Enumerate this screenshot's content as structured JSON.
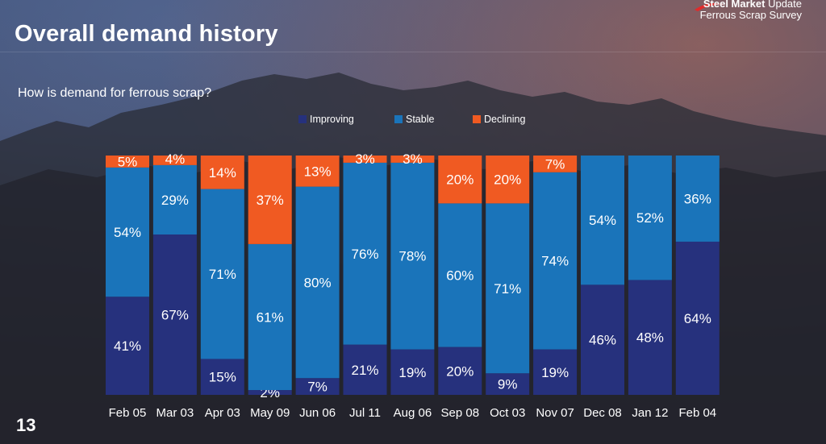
{
  "slide": {
    "title": "Overall demand history",
    "subtitle": "How is demand for ferrous scrap?",
    "page_number": "13",
    "logo_line1_bold": "Steel Market",
    "logo_line1_rest": "Update",
    "logo_line2": "Ferrous Scrap Survey"
  },
  "colors": {
    "improving": "#26317d",
    "stable": "#1a74ba",
    "declining": "#f05a22",
    "logo_swoosh": "#e02b2b"
  },
  "chart_data": {
    "type": "bar",
    "stacked": true,
    "title": "How is demand for ferrous scrap?",
    "categories": [
      "Feb 05",
      "Mar 03",
      "Apr 03",
      "May 09",
      "Jun 06",
      "Jul 11",
      "Aug 06",
      "Sep 08",
      "Oct 03",
      "Nov 07",
      "Dec 08",
      "Jan 12",
      "Feb 04"
    ],
    "series": [
      {
        "name": "Improving",
        "values": [
          41,
          67,
          15,
          2,
          7,
          21,
          19,
          20,
          9,
          19,
          46,
          48,
          64
        ]
      },
      {
        "name": "Stable",
        "values": [
          54,
          29,
          71,
          61,
          80,
          76,
          78,
          60,
          71,
          74,
          54,
          52,
          36
        ]
      },
      {
        "name": "Declining",
        "values": [
          5,
          4,
          14,
          37,
          13,
          3,
          3,
          20,
          20,
          7,
          0,
          0,
          0
        ]
      }
    ],
    "ylim": [
      0,
      100
    ],
    "legend_position": "top"
  }
}
